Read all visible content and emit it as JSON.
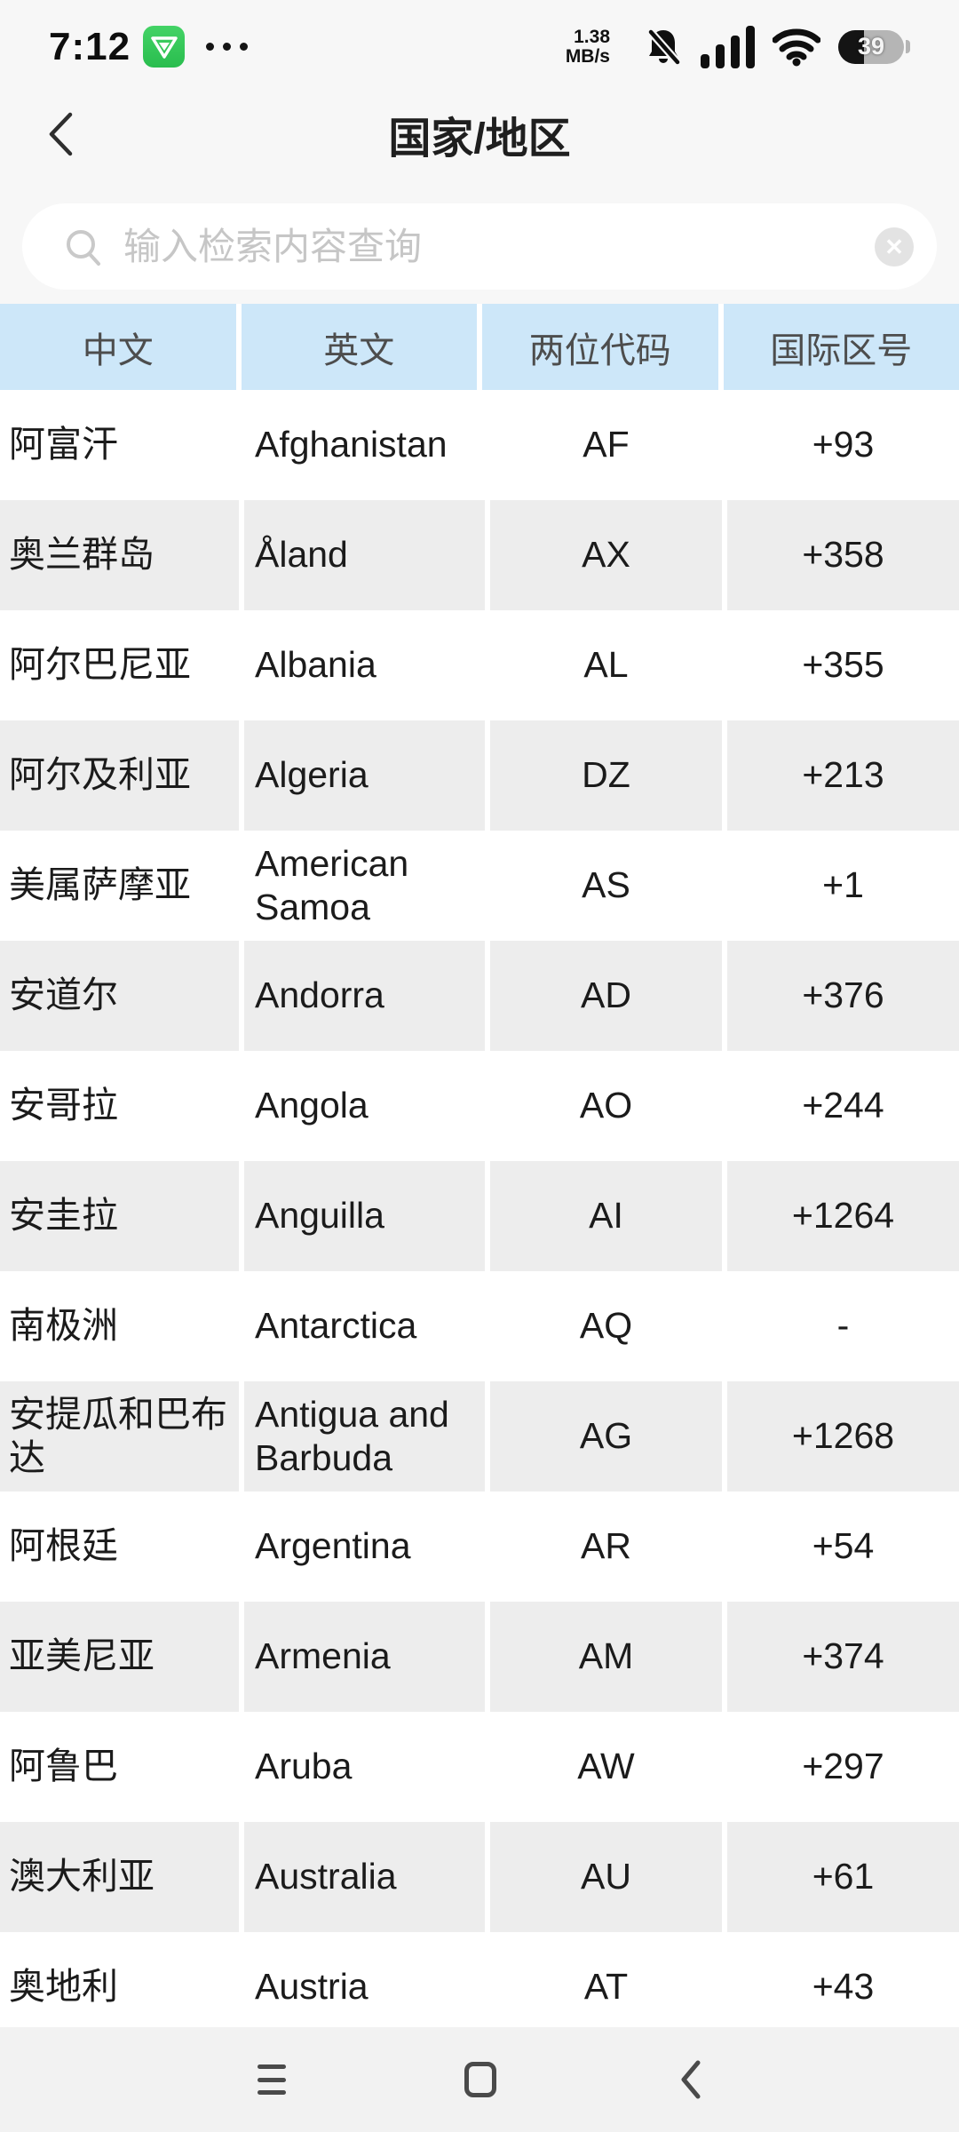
{
  "status_bar": {
    "time": "7:12",
    "network_speed_value": "1.38",
    "network_speed_unit": "MB/s",
    "battery_percent": "39"
  },
  "header": {
    "title": "国家/地区"
  },
  "search": {
    "placeholder": "输入检索内容查询"
  },
  "table": {
    "columns": [
      "中文",
      "英文",
      "两位代码",
      "国际区号"
    ],
    "rows": [
      {
        "cn": "阿富汗",
        "en": "Afghanistan",
        "code": "AF",
        "dial": "+93"
      },
      {
        "cn": "奥兰群岛",
        "en": "Åland",
        "code": "AX",
        "dial": "+358"
      },
      {
        "cn": "阿尔巴尼亚",
        "en": "Albania",
        "code": "AL",
        "dial": "+355"
      },
      {
        "cn": "阿尔及利亚",
        "en": "Algeria",
        "code": "DZ",
        "dial": "+213"
      },
      {
        "cn": "美属萨摩亚",
        "en": "American Samoa",
        "code": "AS",
        "dial": "+1"
      },
      {
        "cn": "安道尔",
        "en": "Andorra",
        "code": "AD",
        "dial": "+376"
      },
      {
        "cn": "安哥拉",
        "en": "Angola",
        "code": "AO",
        "dial": "+244"
      },
      {
        "cn": "安圭拉",
        "en": "Anguilla",
        "code": "AI",
        "dial": "+1264"
      },
      {
        "cn": "南极洲",
        "en": "Antarctica",
        "code": "AQ",
        "dial": "-"
      },
      {
        "cn": "安提瓜和巴布达",
        "en": "Antigua and Barbuda",
        "code": "AG",
        "dial": "+1268"
      },
      {
        "cn": "阿根廷",
        "en": "Argentina",
        "code": "AR",
        "dial": "+54"
      },
      {
        "cn": "亚美尼亚",
        "en": "Armenia",
        "code": "AM",
        "dial": "+374"
      },
      {
        "cn": "阿鲁巴",
        "en": "Aruba",
        "code": "AW",
        "dial": "+297"
      },
      {
        "cn": "澳大利亚",
        "en": "Australia",
        "code": "AU",
        "dial": "+61"
      },
      {
        "cn": "奥地利",
        "en": "Austria",
        "code": "AT",
        "dial": "+43"
      }
    ]
  },
  "colors": {
    "page_bg": "#f7f7f7",
    "table_header_bg": "#cde7f9",
    "row_alt_bg": "#ededed",
    "nav_bar_bg": "#f2f2f2",
    "app_badge_green": "#2fc655"
  }
}
